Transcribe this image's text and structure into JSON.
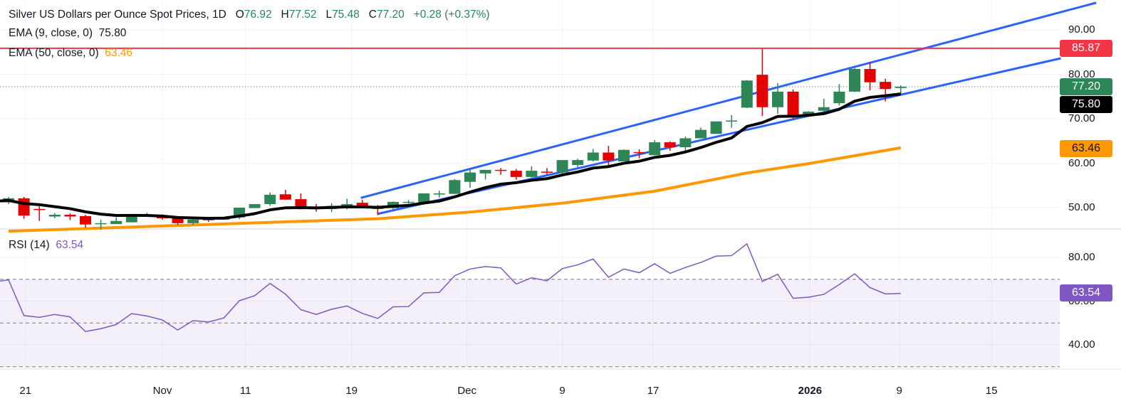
{
  "header": {
    "title": "Silver US Dollars per Ounce Spot Prices, 1D",
    "open_label": "O",
    "open": "76.92",
    "high_label": "H",
    "high": "77.52",
    "low_label": "L",
    "low": "75.48",
    "close_label": "C",
    "close": "77.20",
    "change": "+0.28 (+0.37%)"
  },
  "indicators": {
    "ema9": {
      "label": "EMA (9, close, 0)",
      "value": "75.80"
    },
    "ema50": {
      "label": "EMA (50, close, 0)",
      "value": "63.46"
    },
    "rsi": {
      "label": "RSI (14)",
      "value": "63.54"
    }
  },
  "price_labels": {
    "resistance": "85.87",
    "last": "77.20",
    "ema9": "75.80",
    "ema50": "63.46",
    "rsi": "63.54"
  },
  "colors": {
    "up": "#2e8555",
    "down": "#e50000",
    "ema9": "#000000",
    "ema50": "#ff9800",
    "trend": "#2962ff",
    "resistance": "#f23645",
    "rsi": "#7e57c2"
  },
  "chart_data": {
    "type": "candlestick",
    "title": "Silver US Dollars per Ounce Spot Prices, 1D",
    "price_axis": {
      "ticks": [
        "90.00",
        "80.00",
        "70.00",
        "60.00",
        "50.00"
      ],
      "tick_values": [
        90,
        80,
        70,
        60,
        50
      ],
      "range": [
        45.1,
        96.7
      ]
    },
    "rsi_axis": {
      "ticks": [
        "80.00",
        "60.00",
        "40.00"
      ],
      "tick_values": [
        80,
        60,
        40
      ],
      "levels": [
        70,
        50,
        30
      ]
    },
    "x_ticks": [
      {
        "label": "21",
        "bar": 1.1,
        "bold": false
      },
      {
        "label": "Nov",
        "bar": 10,
        "bold": false
      },
      {
        "label": "11",
        "bar": 15.4,
        "bold": false
      },
      {
        "label": "19",
        "bar": 22.3,
        "bold": false
      },
      {
        "label": "Dec",
        "bar": 29.8,
        "bold": false
      },
      {
        "label": "9",
        "bar": 36,
        "bold": false
      },
      {
        "label": "17",
        "bar": 41.9,
        "bold": false
      },
      {
        "label": "2026",
        "bar": 52.1,
        "bold": true
      },
      {
        "label": "9",
        "bar": 57.9,
        "bold": false
      },
      {
        "label": "15",
        "bar": 63.9,
        "bold": false
      }
    ],
    "ohlc": [
      [
        51.2,
        52.4,
        50.8,
        52.1
      ],
      [
        52.1,
        52.4,
        47.5,
        48.2
      ],
      [
        49.7,
        50.3,
        47.0,
        49.6
      ],
      [
        48.0,
        48.8,
        47.6,
        48.4
      ],
      [
        48.4,
        48.7,
        47.2,
        48.0
      ],
      [
        48.1,
        48.4,
        45.5,
        46.2
      ],
      [
        46.4,
        47.3,
        45.0,
        46.5
      ],
      [
        46.3,
        47.8,
        46.3,
        47.0
      ],
      [
        46.7,
        48.5,
        46.7,
        48.4
      ],
      [
        48.4,
        48.8,
        48.0,
        48.1
      ],
      [
        48.1,
        48.5,
        47.3,
        47.6
      ],
      [
        47.7,
        47.7,
        46.1,
        46.5
      ],
      [
        46.5,
        47.7,
        46.1,
        47.3
      ],
      [
        47.4,
        47.9,
        46.8,
        47.2
      ],
      [
        47.3,
        47.9,
        47.3,
        47.8
      ],
      [
        47.8,
        50.0,
        47.4,
        50.0
      ],
      [
        49.9,
        50.8,
        49.9,
        50.8
      ],
      [
        50.8,
        53.4,
        50.4,
        52.9
      ],
      [
        53.0,
        54.0,
        51.8,
        51.8
      ],
      [
        51.9,
        53.2,
        49.6,
        50.2
      ],
      [
        50.0,
        50.8,
        49.1,
        49.7
      ],
      [
        49.7,
        51.0,
        49.0,
        50.4
      ],
      [
        50.2,
        52.0,
        49.6,
        50.8
      ],
      [
        51.1,
        51.8,
        50.0,
        50.0
      ],
      [
        50.3,
        50.6,
        48.3,
        49.7
      ],
      [
        49.9,
        51.4,
        49.5,
        51.3
      ],
      [
        51.2,
        51.7,
        50.9,
        51.3
      ],
      [
        51.1,
        53.2,
        51.1,
        53.2
      ],
      [
        53.1,
        53.8,
        52.3,
        53.2
      ],
      [
        53.1,
        56.4,
        53.1,
        56.2
      ],
      [
        55.8,
        58.9,
        54.5,
        57.9
      ],
      [
        57.7,
        58.5,
        56.3,
        58.5
      ],
      [
        58.5,
        58.9,
        57.4,
        58.4
      ],
      [
        58.3,
        58.7,
        56.3,
        56.9
      ],
      [
        56.9,
        59.3,
        56.8,
        58.3
      ],
      [
        58.1,
        58.9,
        57.4,
        58.0
      ],
      [
        57.9,
        60.7,
        57.6,
        60.7
      ],
      [
        59.6,
        61.0,
        59.0,
        60.7
      ],
      [
        60.6,
        63.2,
        60.4,
        62.4
      ],
      [
        62.4,
        63.9,
        59.6,
        60.6
      ],
      [
        60.4,
        63.1,
        60.4,
        63.0
      ],
      [
        62.5,
        63.1,
        61.1,
        62.3
      ],
      [
        61.8,
        65.2,
        61.8,
        64.7
      ],
      [
        64.7,
        64.9,
        62.8,
        63.6
      ],
      [
        63.6,
        66.0,
        62.6,
        65.6
      ],
      [
        65.6,
        68.0,
        65.6,
        67.5
      ],
      [
        66.6,
        69.4,
        66.6,
        69.4
      ],
      [
        69.4,
        70.8,
        68.0,
        69.6
      ],
      [
        72.5,
        78.7,
        72.4,
        78.6
      ],
      [
        79.9,
        85.87,
        70.6,
        72.6
      ],
      [
        72.6,
        78.0,
        71.1,
        76.1
      ],
      [
        76.1,
        76.6,
        70.0,
        70.8
      ],
      [
        70.8,
        71.7,
        70.6,
        71.6
      ],
      [
        71.8,
        74.5,
        71.1,
        72.6
      ],
      [
        73.5,
        77.8,
        73.0,
        76.1
      ],
      [
        76.1,
        81.4,
        76.0,
        81.2
      ],
      [
        81.2,
        82.8,
        76.4,
        78.2
      ],
      [
        78.3,
        79.0,
        73.9,
        76.7
      ],
      [
        76.92,
        77.52,
        75.48,
        77.2
      ]
    ],
    "ema9_seed": 51.5,
    "ema50_points": [
      [
        0,
        44.7
      ],
      [
        24,
        47.5
      ],
      [
        30,
        49.0
      ],
      [
        36,
        51.0
      ],
      [
        42,
        53.7
      ],
      [
        48,
        57.8
      ],
      [
        52,
        59.9
      ],
      [
        58,
        63.46
      ]
    ],
    "resistance_level": 85.87,
    "last_price": 77.2,
    "trendlines": [
      {
        "name": "channel-upper",
        "from": [
          22.9,
          52.2
        ],
        "to": [
          70.7,
          96.1
        ]
      },
      {
        "name": "channel-lower",
        "from": [
          24,
          48.6
        ],
        "to": [
          68.4,
          83.6
        ]
      }
    ],
    "rsi": [
      69.7,
      53.4,
      52.6,
      53.9,
      52.8,
      46.1,
      47.4,
      49.3,
      54.3,
      53.2,
      51.4,
      46.8,
      51.1,
      50.5,
      52.3,
      60.2,
      62.5,
      68.1,
      63.2,
      56.1,
      53.9,
      56.3,
      57.8,
      54.4,
      52.1,
      57.4,
      57.5,
      63.8,
      64.0,
      71.6,
      74.7,
      75.8,
      75.2,
      67.8,
      70.7,
      69.3,
      74.9,
      76.6,
      79.3,
      70.9,
      74.7,
      73.0,
      77.1,
      72.7,
      75.4,
      77.7,
      80.6,
      80.8,
      86.2,
      69.0,
      72.3,
      61.3,
      61.8,
      63.1,
      67.6,
      72.5,
      66.2,
      63.3,
      63.54
    ]
  }
}
